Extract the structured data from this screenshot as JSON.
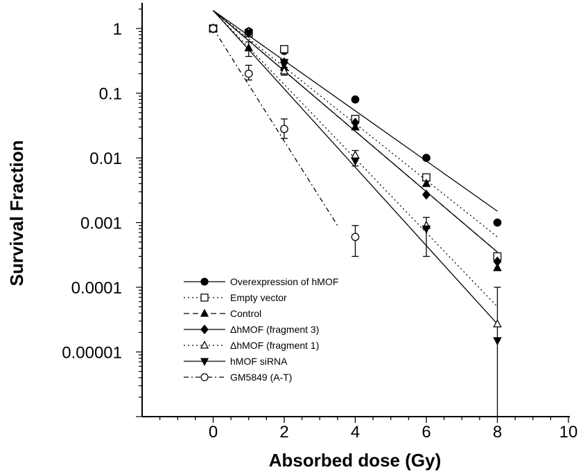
{
  "chart_data": {
    "type": "scatter",
    "xlabel": "Absorbed dose (Gy)",
    "ylabel": "Survival Fraction",
    "xlim": [
      -2,
      10
    ],
    "x_ticks": [
      0,
      2,
      4,
      6,
      8,
      10
    ],
    "y_scale": "log",
    "ylim": [
      1e-06,
      2.5
    ],
    "y_ticks": [
      {
        "value": 1,
        "label": "1"
      },
      {
        "value": 0.1,
        "label": "0.1"
      },
      {
        "value": 0.01,
        "label": "0.01"
      },
      {
        "value": 0.001,
        "label": "0.001"
      },
      {
        "value": 0.0001,
        "label": "0.0001"
      },
      {
        "value": 1e-05,
        "label": "0.00001"
      }
    ],
    "grid": false,
    "legend_position": "bottom-left",
    "series": [
      {
        "name": "Overexpression of hMOF",
        "marker": "circle-filled",
        "line": "solid",
        "x": [
          0,
          1,
          2,
          4,
          6,
          8
        ],
        "y": [
          1,
          0.9,
          0.45,
          0.08,
          0.01,
          0.001
        ],
        "fit": [
          [
            0,
            1.9
          ],
          [
            8,
            0.0015
          ]
        ]
      },
      {
        "name": "Empty vector",
        "marker": "square-open",
        "line": "dotted",
        "x": [
          0,
          1,
          2,
          4,
          6,
          8
        ],
        "y": [
          1,
          0.85,
          0.48,
          0.04,
          0.005,
          0.0003
        ],
        "fit": [
          [
            0,
            1.9
          ],
          [
            8,
            0.0006
          ]
        ]
      },
      {
        "name": "Control",
        "marker": "triangle-filled",
        "line": "dashed",
        "x": [
          0,
          1,
          2,
          4,
          6,
          8
        ],
        "y": [
          1,
          0.5,
          0.25,
          0.03,
          0.004,
          0.0002
        ],
        "fit": [
          [
            0,
            1.9
          ],
          [
            8,
            0.00035
          ]
        ]
      },
      {
        "name": "ΔhMOF (fragment 3)",
        "marker": "diamond-filled",
        "line": "solid",
        "x": [
          0,
          1,
          2,
          4,
          6,
          8
        ],
        "y": [
          1,
          0.85,
          0.3,
          0.035,
          0.0027,
          0.00025
        ],
        "fit": [
          [
            0,
            1.9
          ],
          [
            8,
            0.00035
          ]
        ]
      },
      {
        "name": "ΔhMOF (fragment 1)",
        "marker": "triangle-open",
        "line": "dotted",
        "x": [
          0,
          1,
          2,
          4,
          6,
          8
        ],
        "y": [
          1,
          0.9,
          0.22,
          0.011,
          0.0009,
          2.7e-05
        ],
        "fit": [
          [
            0,
            1.9
          ],
          [
            8,
            5e-05
          ]
        ]
      },
      {
        "name": " hMOF siRNA",
        "marker": "triangle-down-filled",
        "line": "solid",
        "x": [
          0,
          1,
          2,
          4,
          6,
          8
        ],
        "y": [
          1,
          0.85,
          0.3,
          0.009,
          0.0008,
          1.5e-05
        ],
        "fit": [
          [
            0,
            1.9
          ],
          [
            8,
            2.7e-05
          ]
        ]
      },
      {
        "name": "GM5849 (A-T)",
        "marker": "circle-open",
        "line": "dash-dot",
        "x": [
          0,
          1,
          2,
          4
        ],
        "y": [
          1,
          0.2,
          0.028,
          0.0006
        ],
        "fit": [
          [
            0,
            1
          ],
          [
            3.5,
            0.0009
          ]
        ]
      }
    ],
    "error_bars": [
      {
        "x": 1,
        "low": 0.37,
        "high": 0.62
      },
      {
        "x": 1,
        "low": 0.16,
        "high": 0.27
      },
      {
        "x": 2,
        "low": 0.02,
        "high": 0.04
      },
      {
        "x": 2,
        "low": 0.19,
        "high": 0.25
      },
      {
        "x": 4,
        "low": 0.0003,
        "high": 0.0009
      },
      {
        "x": 4,
        "low": 0.0075,
        "high": 0.013
      },
      {
        "x": 6,
        "low": 0.0003,
        "high": 0.0012
      },
      {
        "x": 8,
        "low": 1e-06,
        "high": 0.0001
      }
    ]
  }
}
